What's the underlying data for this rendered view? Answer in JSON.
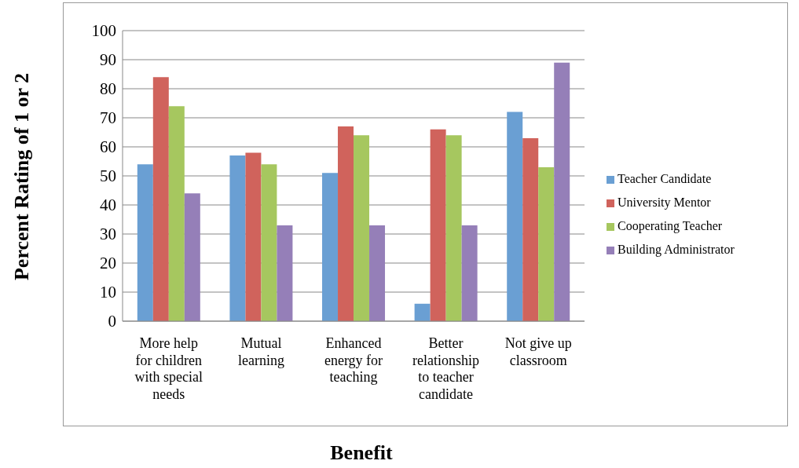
{
  "chart_data": {
    "type": "bar",
    "xlabel": "Benefit",
    "ylabel": "Percent Rating of 1 or 2",
    "categories": [
      "More help for children with special needs",
      "Mutual learning",
      "Enhanced energy for teaching",
      "Better relationship to teacher candidate",
      "Not give up classroom"
    ],
    "series": [
      {
        "name": "Teacher Candidate",
        "color": "#6a9fd3",
        "values": [
          54,
          57,
          51,
          6,
          72
        ]
      },
      {
        "name": "University Mentor",
        "color": "#d0635c",
        "values": [
          84,
          58,
          67,
          66,
          63
        ]
      },
      {
        "name": "Cooperating Teacher",
        "color": "#a6c75f",
        "values": [
          74,
          54,
          64,
          64,
          53
        ]
      },
      {
        "name": "Building Administrator",
        "color": "#957fb8",
        "values": [
          44,
          33,
          33,
          33,
          89
        ]
      }
    ],
    "ylim": [
      0,
      100
    ],
    "yticks": [
      0,
      10,
      20,
      30,
      40,
      50,
      60,
      70,
      80,
      90,
      100
    ],
    "grid": "y",
    "legend": "right"
  }
}
